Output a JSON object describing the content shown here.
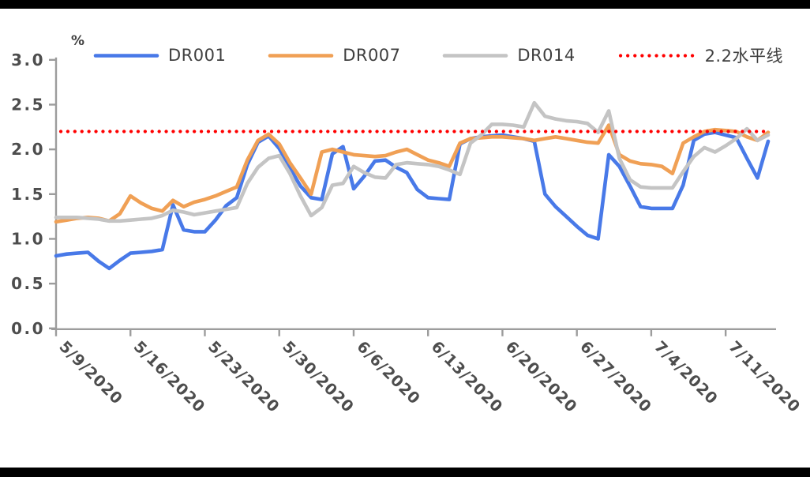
{
  "page": {
    "background_color": "#ffffff",
    "top_bar_color": "#000000",
    "bottom_bar_color": "#000000"
  },
  "chart_data": {
    "type": "line",
    "unit_label": "%",
    "ylim": [
      0.0,
      3.0
    ],
    "y_tick_values": [
      3.0,
      2.5,
      2.0,
      1.5,
      1.0,
      0.5,
      0.0
    ],
    "y_tick_labels": [
      "3.0",
      "2.5",
      "2.0",
      "1.5",
      "1.0",
      "0.5",
      "0.0"
    ],
    "x_tick_indices": [
      0,
      7,
      14,
      21,
      28,
      35,
      42,
      49,
      56,
      63
    ],
    "x_tick_labels": [
      "5/9/2020",
      "5/16/2020",
      "5/23/2020",
      "5/30/2020",
      "6/6/2020",
      "6/13/2020",
      "6/20/2020",
      "6/27/2020",
      "7/4/2020",
      "7/11/2020"
    ],
    "grid": "off",
    "legend_position": "top",
    "axis_color": "#9c9c9c",
    "tick_text_color": "#4d4d4d",
    "reference_line": {
      "label": "2.2水平线",
      "value": 2.2,
      "color": "#ff0000",
      "style": "dotted"
    },
    "dates": [
      "5/9/2020",
      "5/10/2020",
      "5/11/2020",
      "5/12/2020",
      "5/13/2020",
      "5/14/2020",
      "5/15/2020",
      "5/16/2020",
      "5/17/2020",
      "5/18/2020",
      "5/19/2020",
      "5/20/2020",
      "5/21/2020",
      "5/22/2020",
      "5/23/2020",
      "5/24/2020",
      "5/25/2020",
      "5/26/2020",
      "5/27/2020",
      "5/28/2020",
      "5/29/2020",
      "5/30/2020",
      "5/31/2020",
      "6/1/2020",
      "6/2/2020",
      "6/3/2020",
      "6/4/2020",
      "6/5/2020",
      "6/6/2020",
      "6/7/2020",
      "6/8/2020",
      "6/9/2020",
      "6/10/2020",
      "6/11/2020",
      "6/12/2020",
      "6/13/2020",
      "6/14/2020",
      "6/15/2020",
      "6/16/2020",
      "6/17/2020",
      "6/18/2020",
      "6/19/2020",
      "6/20/2020",
      "6/21/2020",
      "6/22/2020",
      "6/23/2020",
      "6/24/2020",
      "6/25/2020",
      "6/26/2020",
      "6/27/2020",
      "6/28/2020",
      "6/29/2020",
      "6/30/2020",
      "7/1/2020",
      "7/2/2020",
      "7/3/2020",
      "7/4/2020",
      "7/5/2020",
      "7/6/2020",
      "7/7/2020",
      "7/8/2020",
      "7/9/2020",
      "7/10/2020",
      "7/11/2020",
      "7/12/2020",
      "7/13/2020",
      "7/14/2020",
      "7/15/2020"
    ],
    "series": [
      {
        "name": "DR001",
        "color": "#4879e8",
        "values": [
          0.81,
          0.83,
          0.84,
          0.85,
          0.75,
          0.67,
          0.76,
          0.84,
          0.85,
          0.86,
          0.88,
          1.38,
          1.1,
          1.08,
          1.08,
          1.21,
          1.37,
          1.46,
          1.83,
          2.08,
          2.15,
          2.01,
          1.79,
          1.59,
          1.46,
          1.44,
          1.95,
          2.03,
          1.56,
          1.7,
          1.87,
          1.88,
          1.8,
          1.74,
          1.55,
          1.46,
          1.45,
          1.44,
          2.06,
          2.12,
          2.14,
          2.15,
          2.16,
          2.14,
          2.12,
          2.09,
          1.5,
          1.36,
          1.25,
          1.14,
          1.04,
          1.0,
          1.94,
          1.81,
          1.59,
          1.36,
          1.34,
          1.34,
          1.34,
          1.6,
          2.1,
          2.17,
          2.19,
          2.16,
          2.13,
          1.9,
          1.68,
          2.09
        ]
      },
      {
        "name": "DR007",
        "color": "#f0a055",
        "values": [
          1.19,
          1.21,
          1.23,
          1.24,
          1.23,
          1.2,
          1.28,
          1.48,
          1.4,
          1.34,
          1.31,
          1.43,
          1.36,
          1.41,
          1.44,
          1.48,
          1.53,
          1.58,
          1.88,
          2.1,
          2.17,
          2.06,
          1.85,
          1.68,
          1.5,
          1.97,
          2.0,
          1.97,
          1.94,
          1.93,
          1.92,
          1.93,
          1.97,
          2.0,
          1.94,
          1.88,
          1.85,
          1.81,
          2.07,
          2.12,
          2.13,
          2.14,
          2.14,
          2.13,
          2.12,
          2.1,
          2.12,
          2.14,
          2.12,
          2.1,
          2.08,
          2.07,
          2.27,
          1.94,
          1.87,
          1.84,
          1.83,
          1.81,
          1.73,
          2.07,
          2.14,
          2.2,
          2.22,
          2.21,
          2.2,
          2.14,
          2.1,
          2.19
        ]
      },
      {
        "name": "DR014",
        "color": "#c4c4c4",
        "values": [
          1.24,
          1.24,
          1.24,
          1.23,
          1.22,
          1.2,
          1.2,
          1.21,
          1.22,
          1.23,
          1.26,
          1.32,
          1.3,
          1.27,
          1.29,
          1.31,
          1.33,
          1.35,
          1.62,
          1.8,
          1.9,
          1.93,
          1.73,
          1.48,
          1.26,
          1.35,
          1.6,
          1.62,
          1.81,
          1.74,
          1.69,
          1.68,
          1.83,
          1.85,
          1.84,
          1.83,
          1.81,
          1.77,
          1.72,
          2.07,
          2.16,
          2.28,
          2.28,
          2.27,
          2.25,
          2.52,
          2.37,
          2.34,
          2.32,
          2.31,
          2.29,
          2.19,
          2.43,
          1.9,
          1.66,
          1.58,
          1.57,
          1.57,
          1.57,
          1.75,
          1.92,
          2.02,
          1.97,
          2.04,
          2.12,
          2.23,
          2.1,
          2.16
        ]
      }
    ]
  }
}
